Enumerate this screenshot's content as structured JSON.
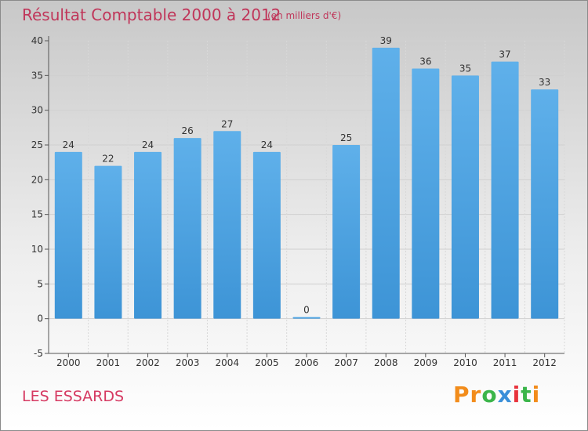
{
  "chart_data": {
    "type": "bar",
    "title": "Résultat Comptable 2000 à 2012",
    "subtitle": "(en milliers d'€)",
    "categories": [
      "2000",
      "2001",
      "2002",
      "2003",
      "2004",
      "2005",
      "2006",
      "2007",
      "2008",
      "2009",
      "2010",
      "2011",
      "2012"
    ],
    "values": [
      24,
      22,
      24,
      26,
      27,
      24,
      0,
      25,
      39,
      36,
      35,
      37,
      33
    ],
    "ylim": [
      -5,
      40
    ],
    "yticks": [
      -5,
      0,
      5,
      10,
      15,
      20,
      25,
      30,
      35,
      40
    ],
    "xlabel": "",
    "ylabel": "",
    "grid": true,
    "bar_color": "#3d94d6",
    "bar_color_light": "#5fb0ea"
  },
  "footer": {
    "commune": "LES ESSARDS",
    "brand_letters": [
      "P",
      "r",
      "o",
      "x",
      "i",
      "t",
      "i"
    ],
    "brand_colors": [
      "#f28c1b",
      "#f28c1b",
      "#3bb54a",
      "#3a8fd9",
      "#e8333c",
      "#3bb54a",
      "#f28c1b"
    ]
  }
}
